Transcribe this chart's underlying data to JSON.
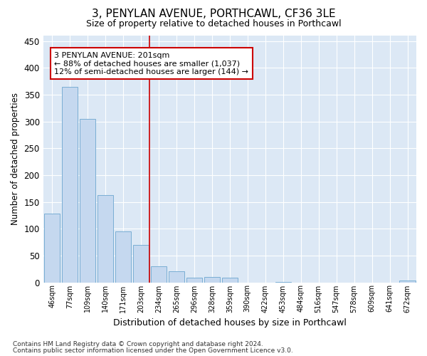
{
  "title1": "3, PENYLAN AVENUE, PORTHCAWL, CF36 3LE",
  "title2": "Size of property relative to detached houses in Porthcawl",
  "xlabel": "Distribution of detached houses by size in Porthcawl",
  "ylabel": "Number of detached properties",
  "categories": [
    "46sqm",
    "77sqm",
    "109sqm",
    "140sqm",
    "171sqm",
    "203sqm",
    "234sqm",
    "265sqm",
    "296sqm",
    "328sqm",
    "359sqm",
    "390sqm",
    "422sqm",
    "453sqm",
    "484sqm",
    "516sqm",
    "547sqm",
    "578sqm",
    "609sqm",
    "641sqm",
    "672sqm"
  ],
  "values": [
    128,
    365,
    305,
    163,
    95,
    70,
    30,
    20,
    8,
    10,
    8,
    0,
    0,
    1,
    0,
    0,
    0,
    0,
    0,
    0,
    3
  ],
  "bar_color": "#c5d8ef",
  "bar_edge_color": "#7aaed4",
  "property_line_x": 5.5,
  "annotation_text": "3 PENYLAN AVENUE: 201sqm\n← 88% of detached houses are smaller (1,037)\n12% of semi-detached houses are larger (144) →",
  "annotation_box_color": "#ffffff",
  "annotation_box_edge": "#cc0000",
  "red_line_color": "#cc0000",
  "ylim": [
    0,
    460
  ],
  "yticks": [
    0,
    50,
    100,
    150,
    200,
    250,
    300,
    350,
    400,
    450
  ],
  "background_color": "#dce8f5",
  "grid_color": "#ffffff",
  "footer1": "Contains HM Land Registry data © Crown copyright and database right 2024.",
  "footer2": "Contains public sector information licensed under the Open Government Licence v3.0."
}
